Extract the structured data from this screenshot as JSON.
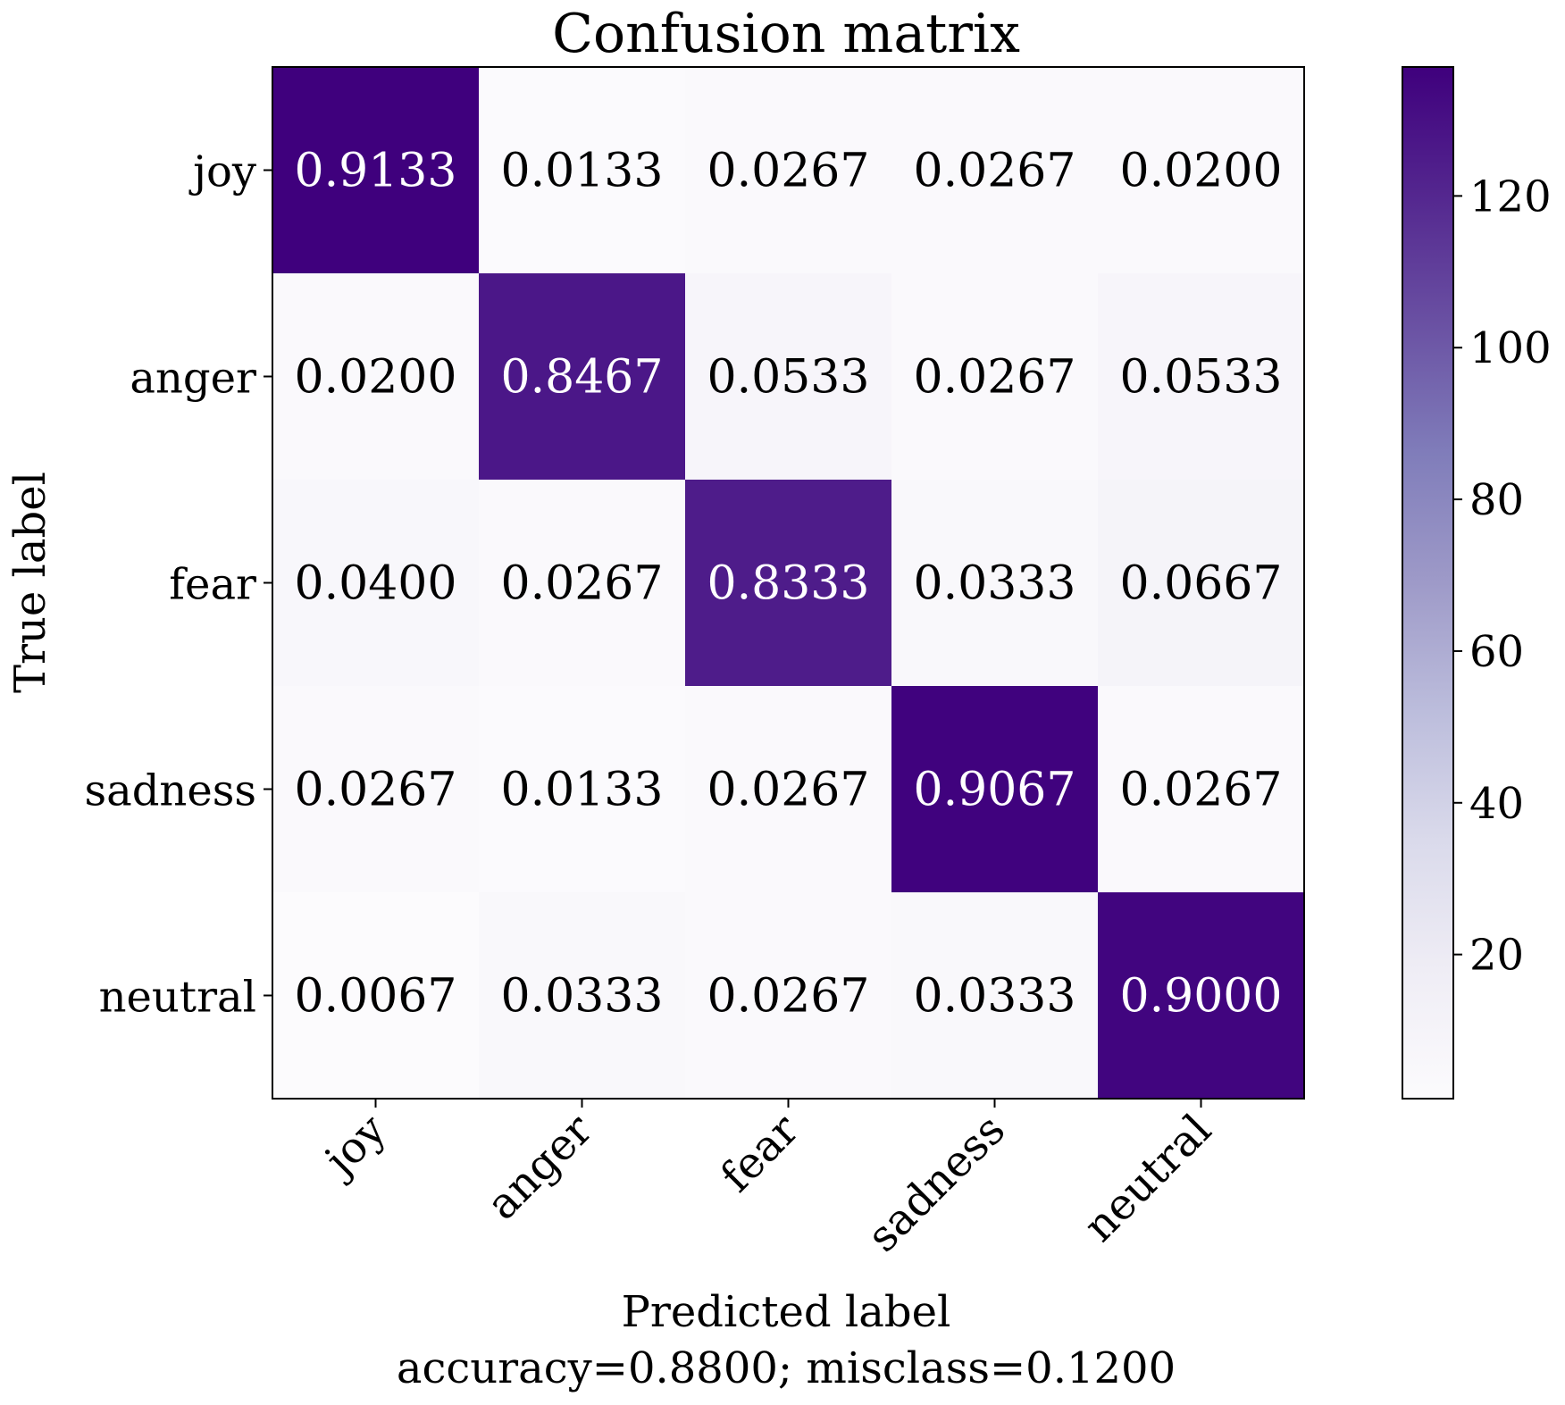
{
  "chart_data": {
    "type": "heatmap",
    "title": "Confusion matrix",
    "xlabel": "Predicted label",
    "ylabel": "True label",
    "xlabel_note": "accuracy=0.8800; misclass=0.1200",
    "x_categories": [
      "joy",
      "anger",
      "fear",
      "sadness",
      "neutral"
    ],
    "y_categories": [
      "joy",
      "anger",
      "fear",
      "sadness",
      "neutral"
    ],
    "cell_labels": [
      [
        "0.9133",
        "0.0133",
        "0.0267",
        "0.0267",
        "0.0200"
      ],
      [
        "0.0200",
        "0.8467",
        "0.0533",
        "0.0267",
        "0.0533"
      ],
      [
        "0.0400",
        "0.0267",
        "0.8333",
        "0.0333",
        "0.0667"
      ],
      [
        "0.0267",
        "0.0133",
        "0.0267",
        "0.9067",
        "0.0267"
      ],
      [
        "0.0067",
        "0.0333",
        "0.0267",
        "0.0333",
        "0.9000"
      ]
    ],
    "counts": [
      [
        137,
        2,
        4,
        4,
        3
      ],
      [
        3,
        127,
        8,
        4,
        8
      ],
      [
        6,
        4,
        125,
        5,
        10
      ],
      [
        4,
        2,
        4,
        136,
        4
      ],
      [
        1,
        5,
        4,
        5,
        135
      ]
    ],
    "colorbar": {
      "colormap": "Purples",
      "range": [
        1,
        137
      ],
      "ticks": [
        "20",
        "40",
        "60",
        "80",
        "100",
        "120"
      ]
    },
    "grid": false
  }
}
